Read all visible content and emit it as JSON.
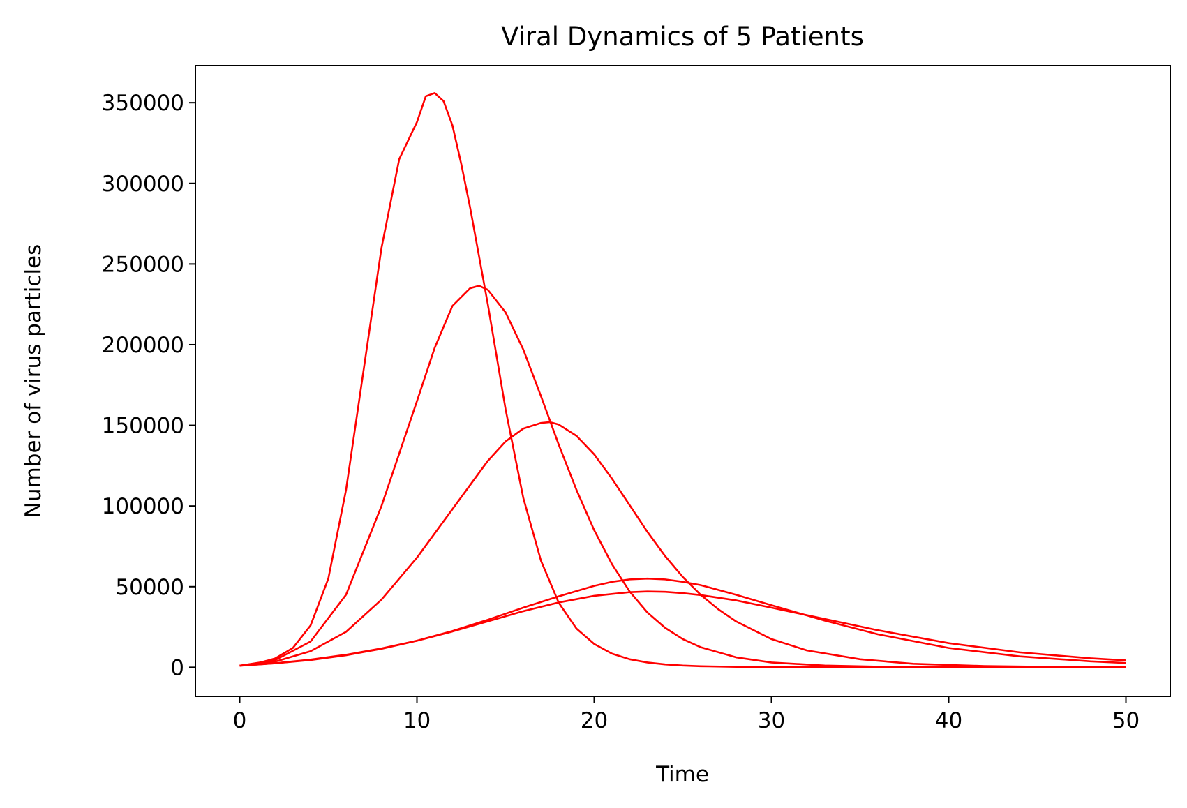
{
  "chart_data": {
    "type": "line",
    "title": "Viral Dynamics of 5 Patients",
    "xlabel": "Time",
    "ylabel": "Number of virus particles",
    "xlim": [
      -2.5,
      52.5
    ],
    "ylim": [
      -18000,
      373000
    ],
    "xticks": [
      0,
      10,
      20,
      30,
      40,
      50
    ],
    "yticks": [
      0,
      50000,
      100000,
      150000,
      200000,
      250000,
      300000,
      350000
    ],
    "grid": false,
    "line_color": "#ff0000",
    "series": [
      {
        "x": [
          0,
          1,
          2,
          3,
          4,
          5,
          6,
          7,
          8,
          9,
          10,
          10.5,
          11,
          11.5,
          12,
          12.5,
          13,
          14,
          15,
          16,
          17,
          18,
          19,
          20,
          21,
          22,
          23,
          24,
          25,
          26,
          28,
          30,
          33,
          36,
          40,
          45,
          50
        ],
        "y": [
          1000,
          2500,
          5500,
          12000,
          26000,
          55000,
          110000,
          185000,
          260000,
          315000,
          338000,
          354000,
          356000,
          351000,
          336000,
          312000,
          285000,
          225000,
          160000,
          105000,
          66000,
          40000,
          24000,
          14500,
          8500,
          5000,
          3000,
          1800,
          1100,
          700,
          300,
          150,
          60,
          25,
          10,
          5,
          2
        ]
      },
      {
        "x": [
          0,
          2,
          4,
          6,
          8,
          10,
          11,
          12,
          13,
          13.5,
          14,
          15,
          16,
          17,
          18,
          19,
          20,
          21,
          22,
          23,
          24,
          25,
          26,
          28,
          30,
          33,
          36,
          40,
          45,
          50
        ],
        "y": [
          1000,
          4500,
          16000,
          45000,
          100000,
          165000,
          198000,
          224000,
          235000,
          236500,
          234000,
          220000,
          197000,
          168000,
          138000,
          110000,
          85000,
          64000,
          47000,
          34000,
          24500,
          17500,
          12500,
          6200,
          3000,
          1100,
          400,
          100,
          20,
          5
        ]
      },
      {
        "x": [
          0,
          2,
          4,
          6,
          8,
          10,
          12,
          14,
          15,
          16,
          17,
          17.5,
          18,
          19,
          20,
          21,
          22,
          23,
          24,
          25,
          26,
          27,
          28,
          30,
          32,
          35,
          38,
          42,
          46,
          50
        ],
        "y": [
          1000,
          3500,
          10000,
          22000,
          42000,
          68000,
          98000,
          128000,
          140000,
          148000,
          151500,
          152000,
          150500,
          143500,
          132000,
          117000,
          100500,
          84000,
          69000,
          56000,
          45000,
          36000,
          28500,
          17500,
          10500,
          5000,
          2200,
          800,
          250,
          80
        ]
      },
      {
        "x": [
          0,
          2,
          4,
          6,
          8,
          10,
          12,
          14,
          16,
          18,
          20,
          21,
          22,
          23,
          24,
          25,
          26,
          28,
          30,
          33,
          36,
          40,
          44,
          48,
          50
        ],
        "y": [
          1000,
          2500,
          4500,
          7500,
          11500,
          16500,
          22500,
          29500,
          37000,
          44000,
          50500,
          53000,
          54500,
          55000,
          54500,
          53000,
          51000,
          45000,
          38500,
          29000,
          20500,
          12000,
          6800,
          3700,
          2700
        ]
      },
      {
        "x": [
          0,
          2,
          4,
          6,
          8,
          10,
          12,
          14,
          16,
          18,
          20,
          22,
          23,
          24,
          25,
          26,
          28,
          30,
          33,
          36,
          40,
          44,
          48,
          50
        ],
        "y": [
          1000,
          2500,
          4800,
          7800,
          11700,
          16500,
          22200,
          28500,
          34800,
          40200,
          44300,
          46600,
          47000,
          46800,
          46000,
          44800,
          41500,
          37000,
          30000,
          23000,
          15000,
          9300,
          5600,
          4300
        ]
      }
    ]
  }
}
